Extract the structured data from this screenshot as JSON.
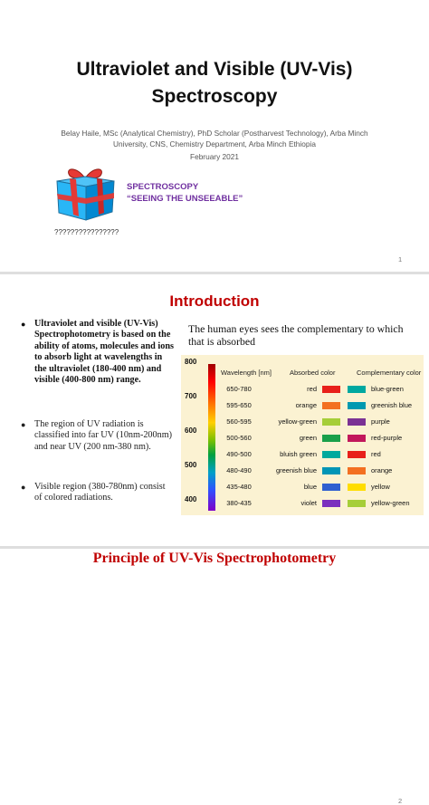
{
  "slide1": {
    "title_line1": "Ultraviolet and Visible (UV-Vis)",
    "title_line2": "Spectroscopy",
    "authors_line1": "Belay Haile, MSc (Analytical Chemistry), PhD Scholar (Postharvest Technology), Arba Minch",
    "authors_line2": "University, CNS, Chemistry Department, Arba Minch Ethiopia",
    "date": "February 2021",
    "spectroscopy_label": "SPECTROSCOPY",
    "tagline": "“SEEING THE UNSEEABLE”",
    "question_marks": "????????????????",
    "page_number": "1",
    "gift_icon": "gift-box-icon"
  },
  "slide2": {
    "title": "Introduction",
    "bullet1": "Ultraviolet and visible (UV-Vis) Spectrophotometry is based on the ability of atoms, molecules and ions to absorb light at wavelengths in the ultraviolet (180-400 nm) and visible (400-800 nm) range.",
    "bullet2": "The region of UV radiation is classified  into  far UV (10nm-200nm) and near UV (200 nm-380 nm).",
    "bullet3": "Visible region (380-780nm) consist of colored radiations.",
    "human_eye_text": "The human eyes sees the complementary to which that is absorbed",
    "page_number": "2",
    "table": {
      "headers": [
        "Wavelength [nm]",
        "Absorbed color",
        "Complementary color"
      ],
      "y_ticks": [
        "800",
        "700",
        "600",
        "500",
        "400"
      ],
      "rows": [
        {
          "wavelength": "650-780",
          "absorbed": "red",
          "complementary": "blue-green",
          "abs_color": "#e8201a",
          "comp_color": "#00a8a0"
        },
        {
          "wavelength": "595-650",
          "absorbed": "orange",
          "complementary": "greenish blue",
          "abs_color": "#f37021",
          "comp_color": "#0099b0"
        },
        {
          "wavelength": "560-595",
          "absorbed": "yellow-green",
          "complementary": "purple",
          "abs_color": "#a6ce39",
          "comp_color": "#7b3294"
        },
        {
          "wavelength": "500-560",
          "absorbed": "green",
          "complementary": "red-purple",
          "abs_color": "#1aa04a",
          "comp_color": "#c2185b"
        },
        {
          "wavelength": "490-500",
          "absorbed": "bluish green",
          "complementary": "red",
          "abs_color": "#00a99d",
          "comp_color": "#e8201a"
        },
        {
          "wavelength": "480-490",
          "absorbed": "greenish blue",
          "complementary": "orange",
          "abs_color": "#0095b6",
          "comp_color": "#f37021"
        },
        {
          "wavelength": "435-480",
          "absorbed": "blue",
          "complementary": "yellow",
          "abs_color": "#2f5fd0",
          "comp_color": "#ffdd00"
        },
        {
          "wavelength": "380-435",
          "absorbed": "violet",
          "complementary": "yellow-green",
          "abs_color": "#7b2fbe",
          "comp_color": "#a6ce39"
        }
      ]
    }
  },
  "slide3": {
    "title": "Principle of UV-Vis Spectrophotometry"
  }
}
